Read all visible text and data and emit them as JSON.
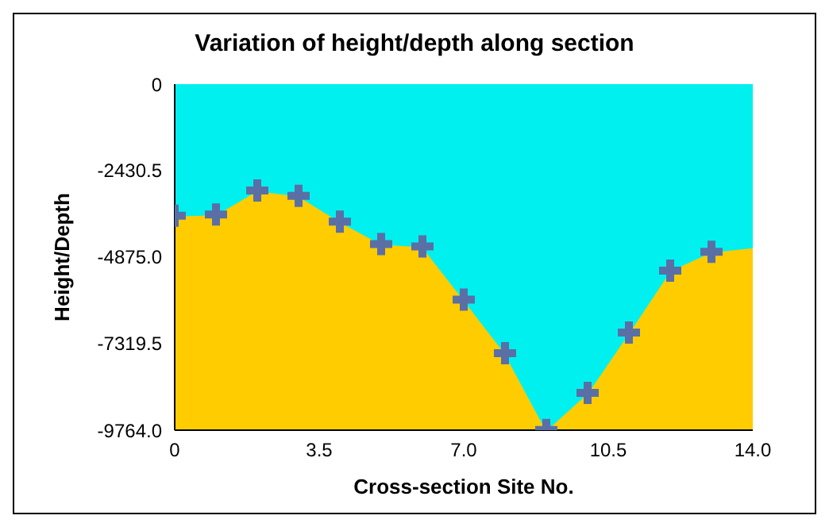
{
  "chart_data": {
    "type": "area",
    "title": "Variation of height/depth along section",
    "xlabel": "Cross-section Site No.",
    "ylabel": "Height/Depth",
    "x": [
      0,
      1,
      2,
      3,
      4,
      5,
      6,
      7,
      8,
      9,
      10,
      11,
      12,
      13,
      14
    ],
    "series": [
      {
        "color": "#00f0f0",
        "marker": "none",
        "values": [
          -3710,
          -3680,
          -3000,
          -3150,
          -3880,
          -4510,
          -4580,
          -6080,
          -7590,
          -9760,
          -8710,
          -7010,
          -5260,
          -4730,
          -4610
        ]
      },
      {
        "type": "scatter",
        "marker": "cross",
        "color": "#5a6fa5",
        "x": [
          0,
          1,
          2,
          3,
          4,
          5,
          6,
          7,
          8,
          9,
          10,
          11,
          12,
          13
        ],
        "values": [
          -3710,
          -3680,
          -3000,
          -3150,
          -3880,
          -4510,
          -4580,
          -6080,
          -7590,
          -9760,
          -8710,
          -7010,
          -5260,
          -4730
        ]
      }
    ],
    "xlim": [
      0,
      14
    ],
    "xticks": [
      0,
      3.5,
      {
        "value": 7,
        "label": "7.0"
      },
      10.5,
      {
        "value": 14,
        "label": "14.0"
      }
    ],
    "ylim": [
      -9764,
      0
    ],
    "yticks": [
      {
        "value": -9764,
        "label": "-9764.0"
      },
      {
        "value": -7319.5,
        "label": "-7319.5"
      },
      {
        "value": -4875,
        "label": "-4875.0"
      },
      {
        "value": -2430.5,
        "label": "-2430.5"
      },
      0
    ]
  }
}
